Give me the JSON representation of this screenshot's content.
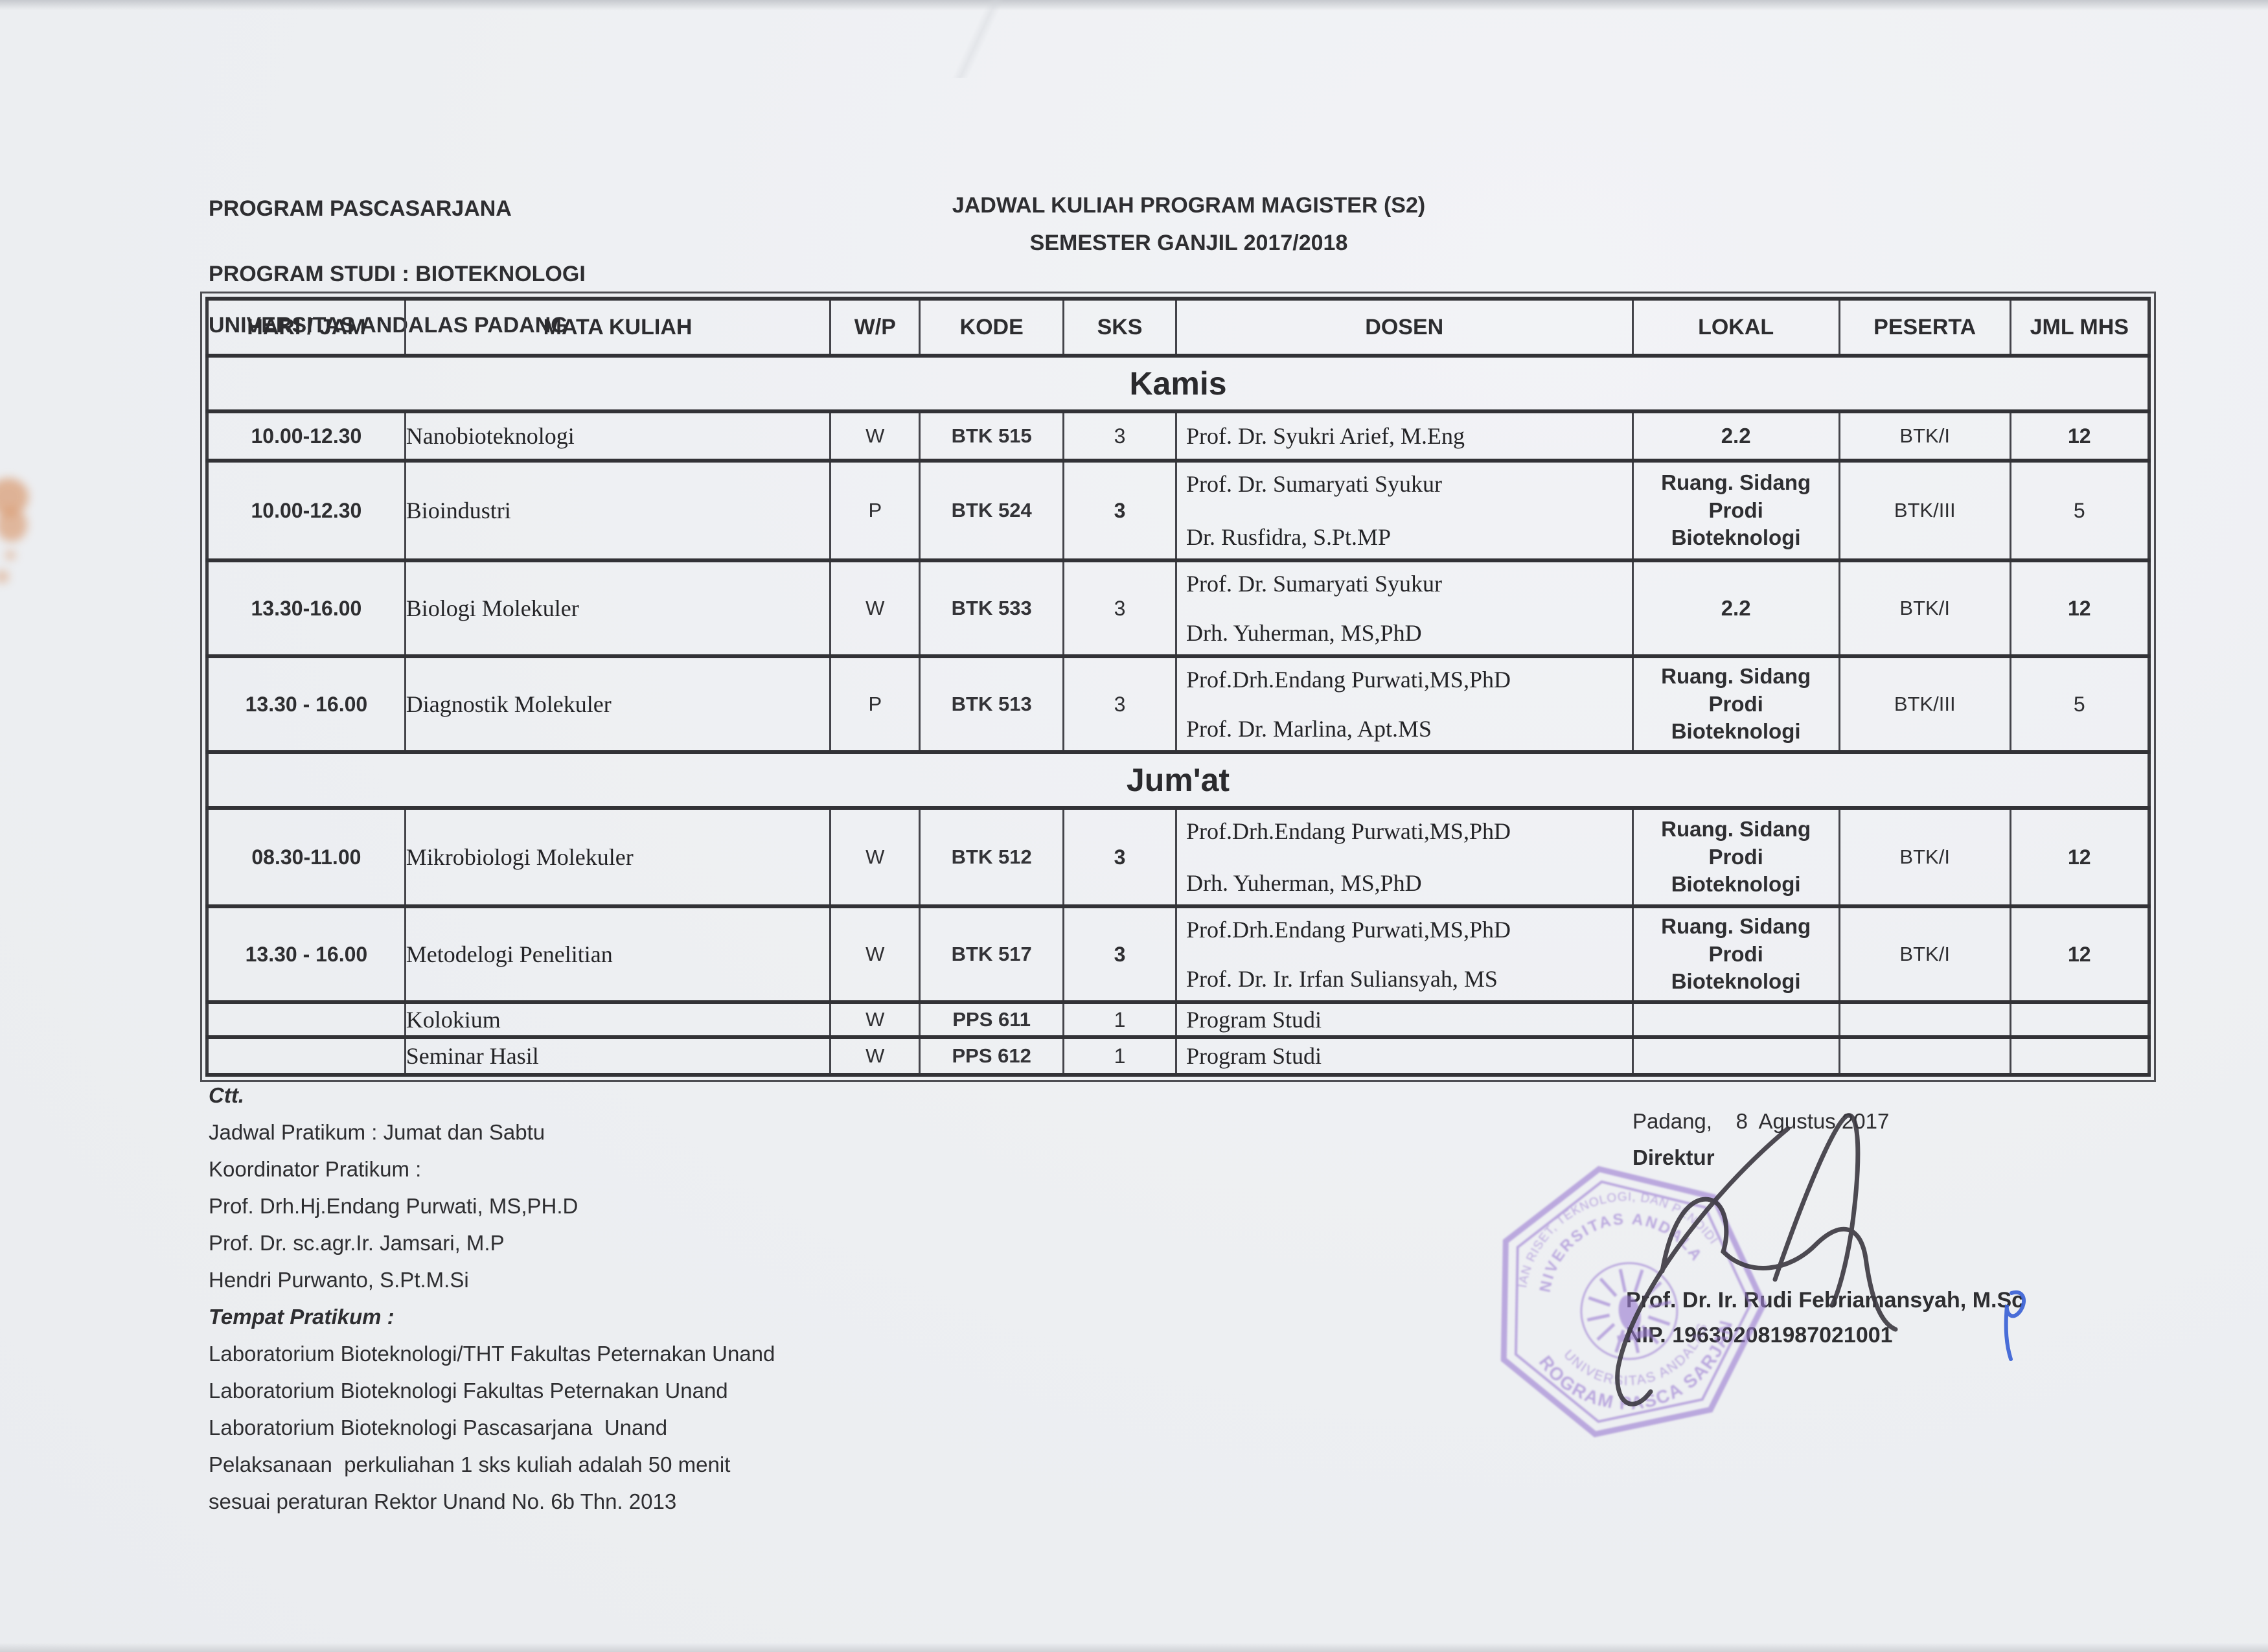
{
  "header": {
    "org_line1": "PROGRAM PASCASARJANA",
    "org_line2": "UNIVERSITAS ANDALAS PADANG",
    "title_line1": "JADWAL KULIAH PROGRAM MAGISTER (S2)",
    "title_line2": "SEMESTER GANJIL 2017/2018",
    "program_studi": "PROGRAM STUDI : BIOTEKNOLOGI"
  },
  "table": {
    "columns": [
      "HARI / JAM",
      "MATA KULIAH",
      "W/P",
      "KODE",
      "SKS",
      "DOSEN",
      "LOKAL",
      "PESERTA",
      "JML MHS"
    ],
    "sections": [
      {
        "day": "Kamis",
        "rows": [
          {
            "jam": "10.00-12.30",
            "mata_kuliah": "Nanobioteknologi",
            "wp": "W",
            "kode": "BTK 515",
            "sks": "3",
            "sks_bold": false,
            "dosen": [
              "Prof. Dr. Syukri Arief,  M.Eng"
            ],
            "lokal": [
              "2.2"
            ],
            "peserta": "BTK/I",
            "jml_mhs": "12",
            "jml_bold": true
          },
          {
            "jam": "10.00-12.30",
            "mata_kuliah": "Bioindustri",
            "wp": "P",
            "kode": "BTK 524",
            "sks": "3",
            "sks_bold": true,
            "dosen": [
              "Prof. Dr. Sumaryati Syukur",
              "Dr. Rusfidra, S.Pt.MP"
            ],
            "lokal": [
              "Ruang. Sidang Prodi",
              "Bioteknologi"
            ],
            "peserta": "BTK/III",
            "jml_mhs": "5",
            "jml_bold": false
          },
          {
            "jam": "13.30-16.00",
            "mata_kuliah": "Biologi Molekuler",
            "wp": "W",
            "kode": "BTK 533",
            "sks": "3",
            "sks_bold": false,
            "dosen": [
              "Prof. Dr. Sumaryati Syukur",
              "Drh. Yuherman, MS,PhD"
            ],
            "lokal": [
              "2.2"
            ],
            "peserta": "BTK/I",
            "jml_mhs": "12",
            "jml_bold": true
          },
          {
            "jam": "13.30 - 16.00",
            "mata_kuliah": "Diagnostik Molekuler",
            "wp": "P",
            "kode": "BTK 513",
            "sks": "3",
            "sks_bold": false,
            "dosen": [
              "Prof.Drh.Endang Purwati,MS,PhD",
              "Prof. Dr. Marlina, Apt.MS"
            ],
            "lokal": [
              "Ruang. Sidang Prodi",
              "Bioteknologi"
            ],
            "peserta": "BTK/III",
            "jml_mhs": "5",
            "jml_bold": false
          }
        ]
      },
      {
        "day": "Jum'at",
        "rows": [
          {
            "jam": "08.30-11.00",
            "mata_kuliah": "Mikrobiologi Molekuler",
            "wp": "W",
            "kode": "BTK 512",
            "sks": "3",
            "sks_bold": true,
            "dosen": [
              "Prof.Drh.Endang Purwati,MS,PhD",
              "Drh. Yuherman, MS,PhD"
            ],
            "lokal": [
              "Ruang. Sidang Prodi",
              "Bioteknologi"
            ],
            "peserta": "BTK/I",
            "jml_mhs": "12",
            "jml_bold": true
          },
          {
            "jam": "13.30 - 16.00",
            "mata_kuliah": "Metodelogi Penelitian",
            "wp": "W",
            "kode": "BTK 517",
            "sks": "3",
            "sks_bold": true,
            "dosen": [
              "Prof.Drh.Endang Purwati,MS,PhD",
              "Prof. Dr. Ir. Irfan  Suliansyah, MS"
            ],
            "lokal": [
              "Ruang. Sidang Prodi",
              "Bioteknologi"
            ],
            "peserta": "BTK/I",
            "jml_mhs": "12",
            "jml_bold": true
          },
          {
            "jam": "",
            "mata_kuliah": "Kolokium",
            "wp": "W",
            "kode": "PPS 611",
            "sks": "1",
            "sks_bold": false,
            "dosen": [
              "Program Studi"
            ],
            "lokal": [],
            "peserta": "",
            "jml_mhs": "",
            "jml_bold": false
          },
          {
            "jam": "",
            "mata_kuliah": "Seminar Hasil",
            "wp": "W",
            "kode": "PPS 612",
            "sks": "1",
            "sks_bold": false,
            "dosen": [
              "Program Studi"
            ],
            "lokal": [],
            "peserta": "",
            "jml_mhs": "",
            "jml_bold": false
          }
        ]
      }
    ]
  },
  "notes": [
    {
      "text": "Ctt.",
      "style": "bolditalic"
    },
    {
      "text": "Jadwal Pratikum : Jumat dan Sabtu",
      "style": "normal"
    },
    {
      "text": "Koordinator Pratikum :",
      "style": "normal"
    },
    {
      "text": "Prof. Drh.Hj.Endang Purwati, MS,PH.D",
      "style": "normal"
    },
    {
      "text": "Prof. Dr. sc.agr.Ir. Jamsari, M.P",
      "style": "normal"
    },
    {
      "text": "Hendri Purwanto, S.Pt.M.Si",
      "style": "normal"
    },
    {
      "text": "Tempat Pratikum :",
      "style": "bolditalic"
    },
    {
      "text": "Laboratorium Bioteknologi/THT Fakultas Peternakan Unand",
      "style": "normal"
    },
    {
      "text": "Laboratorium Bioteknologi Fakultas Peternakan Unand",
      "style": "normal"
    },
    {
      "text": "Laboratorium Bioteknologi Pascasarjana  Unand",
      "style": "normal"
    },
    {
      "text": "Pelaksanaan  perkuliahan 1 sks kuliah adalah 50 menit",
      "style": "normal"
    },
    {
      "text": "sesuai peraturan Rektor Unand No. 6b Thn. 2013",
      "style": "normal"
    }
  ],
  "signature_block": {
    "city_date": "Padang,    8  Agustus 2017",
    "role": "Direktur",
    "name": "Prof. Dr. Ir. Rudi Febriamansyah, M.Sc",
    "nip": "NIP. 196302081987021001"
  },
  "stamp": {
    "arc_top": "KEMENTERIAN RISET, TEKNOLOGI, DAN PENDIDIKAN TINGGI",
    "arc_top2": "UNIVERSITAS ANDALAS",
    "arc_bottom": "PROGRAM PASCA SARJANA",
    "arc_bottom2": "UNIVERSITAS ANDALAS"
  },
  "colors": {
    "paper": "#edeff2",
    "ink": "#2e2e31",
    "table_border": "#3a3a3e",
    "stamp_purple": "#9c7ed2",
    "signature_ink": "#3b3840",
    "blue_pen": "#3b62d6",
    "stain_orange": "#d78f5f"
  }
}
